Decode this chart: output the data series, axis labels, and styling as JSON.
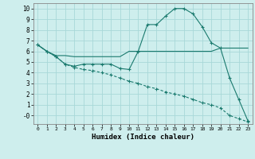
{
  "background_color": "#ceeeed",
  "grid_color": "#a8d8d8",
  "line_color": "#1a7a6e",
  "xlabel": "Humidex (Indice chaleur)",
  "xlim": [
    -0.5,
    23.5
  ],
  "ylim": [
    -0.8,
    10.5
  ],
  "yticks": [
    0,
    1,
    2,
    3,
    4,
    5,
    6,
    7,
    8,
    9,
    10
  ],
  "ytick_labels": [
    "-0",
    "1",
    "2",
    "3",
    "4",
    "5",
    "6",
    "7",
    "8",
    "9",
    "10"
  ],
  "xticks": [
    0,
    1,
    2,
    3,
    4,
    5,
    6,
    7,
    8,
    9,
    10,
    11,
    12,
    13,
    14,
    15,
    16,
    17,
    18,
    19,
    20,
    21,
    22,
    23
  ],
  "line1_x": [
    0,
    1,
    2,
    3,
    4,
    5,
    6,
    7,
    8,
    9,
    10,
    11,
    12,
    13,
    14,
    15,
    16,
    17,
    18,
    19,
    20,
    21,
    22,
    23
  ],
  "line1_y": [
    6.6,
    6.0,
    5.5,
    4.8,
    4.6,
    4.8,
    4.8,
    4.8,
    4.8,
    4.4,
    4.3,
    6.0,
    8.5,
    8.5,
    9.3,
    10.0,
    10.0,
    9.5,
    8.3,
    6.8,
    6.3,
    3.5,
    1.5,
    -0.5
  ],
  "line2_x": [
    0,
    1,
    2,
    3,
    4,
    5,
    6,
    7,
    8,
    9,
    10,
    11,
    12,
    13,
    14,
    15,
    16,
    17,
    18,
    19,
    20,
    21,
    22,
    23
  ],
  "line2_y": [
    6.6,
    6.0,
    5.6,
    5.6,
    5.5,
    5.5,
    5.5,
    5.5,
    5.5,
    5.5,
    6.0,
    6.0,
    6.0,
    6.0,
    6.0,
    6.0,
    6.0,
    6.0,
    6.0,
    6.0,
    6.3,
    6.3,
    6.3,
    6.3
  ],
  "line3_x": [
    0,
    1,
    2,
    3,
    4,
    5,
    6,
    7,
    8,
    9,
    10,
    11,
    12,
    13,
    14,
    15,
    16,
    17,
    18,
    19,
    20,
    21,
    22,
    23
  ],
  "line3_y": [
    6.6,
    6.0,
    5.5,
    4.8,
    4.5,
    4.3,
    4.2,
    4.0,
    3.8,
    3.5,
    3.2,
    3.0,
    2.7,
    2.5,
    2.2,
    2.0,
    1.8,
    1.5,
    1.2,
    1.0,
    0.7,
    0.0,
    -0.3,
    -0.6
  ]
}
